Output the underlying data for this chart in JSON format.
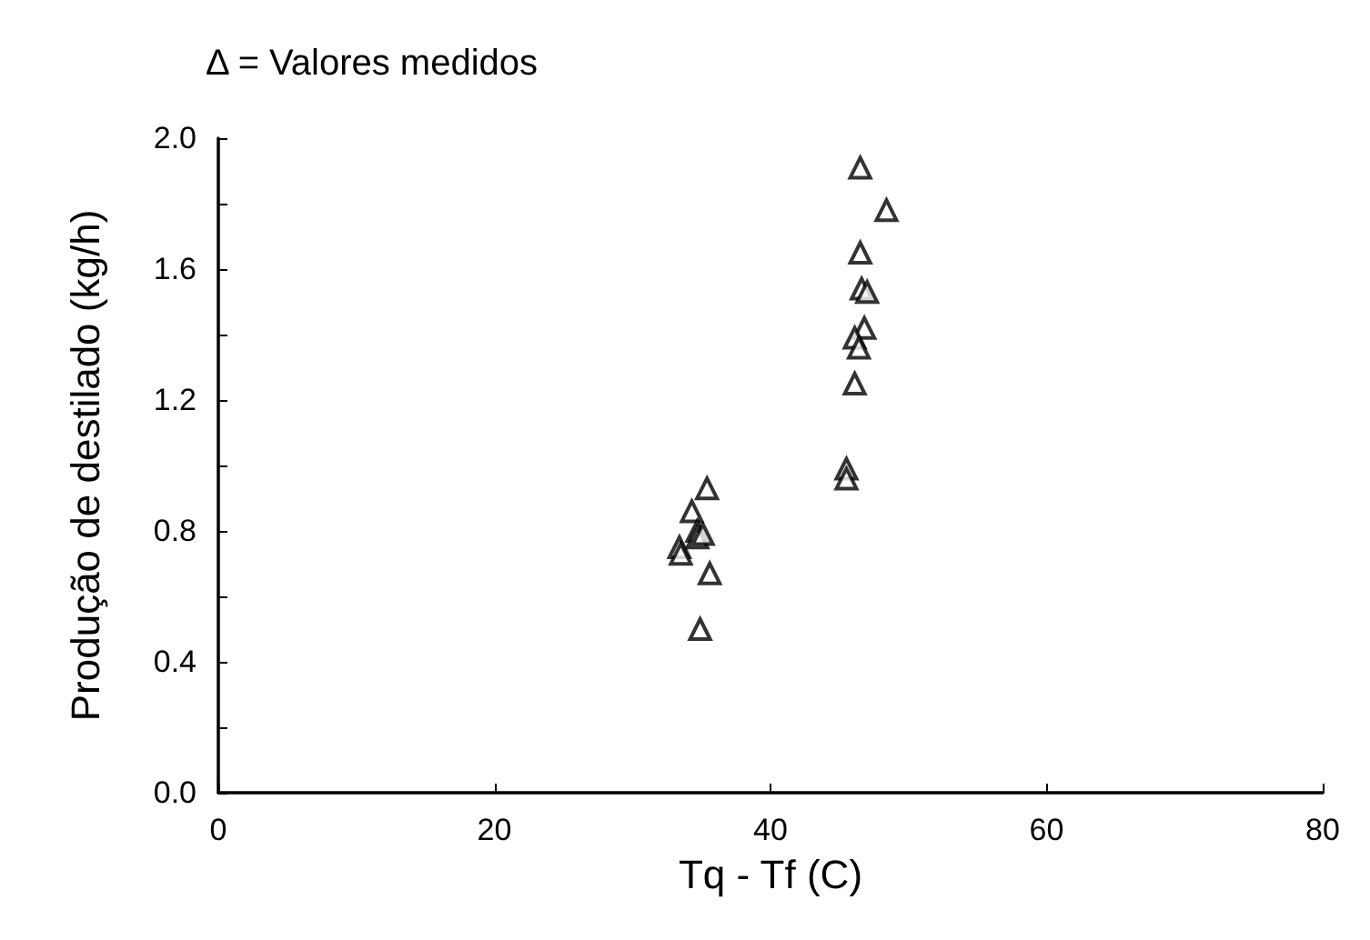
{
  "chart_data": {
    "type": "scatter",
    "title": "Δ = Valores medidos",
    "xlabel": "Tq - Tf (C)",
    "ylabel": "Produção de destilado (kg/h)",
    "x": [
      35.4,
      34.3,
      33.4,
      33.5,
      34.7,
      34.7,
      35.1,
      35.6,
      34.9,
      46.5,
      48.4,
      46.5,
      46.6,
      47.0,
      46.8,
      46.1,
      46.4,
      46.1,
      45.5,
      45.5
    ],
    "values": [
      0.93,
      0.86,
      0.75,
      0.73,
      0.8,
      0.78,
      0.79,
      0.67,
      0.5,
      1.91,
      1.78,
      1.65,
      1.54,
      1.53,
      1.42,
      1.39,
      1.36,
      1.25,
      0.99,
      0.96
    ],
    "color": "#000000",
    "marker": "triangle",
    "grid": false,
    "xlim": [
      0,
      80
    ],
    "xticks": [
      0,
      20,
      40,
      60,
      80
    ],
    "ylim": [
      0,
      2
    ],
    "yticks": [
      {
        "value": 0,
        "label": "0.0"
      },
      {
        "value": 0.2,
        "label": null
      },
      {
        "value": 0.4,
        "label": "0.4"
      },
      {
        "value": 0.6,
        "label": null
      },
      {
        "value": 0.8,
        "label": "0.8"
      },
      {
        "value": 1.0,
        "label": null
      },
      {
        "value": 1.2,
        "label": "1.2"
      },
      {
        "value": 1.4,
        "label": null
      },
      {
        "value": 1.6,
        "label": "1.6"
      },
      {
        "value": 1.8,
        "label": null
      },
      {
        "value": 2.0,
        "label": "2.0"
      }
    ]
  }
}
